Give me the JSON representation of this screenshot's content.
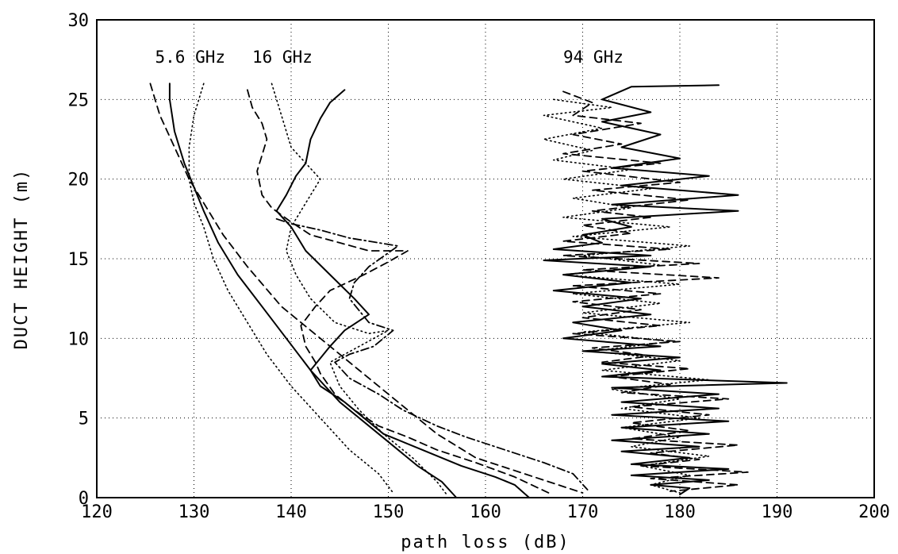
{
  "chart_data": {
    "type": "line",
    "title": "",
    "xlabel": "path loss (dB)",
    "ylabel": "DUCT HEIGHT (m)",
    "xlim": [
      120,
      200
    ],
    "ylim": [
      0,
      30
    ],
    "xticks": [
      "120",
      "130",
      "140",
      "150",
      "160",
      "170",
      "180",
      "190",
      "200"
    ],
    "yticks": [
      "0",
      "5",
      "10",
      "15",
      "20",
      "25",
      "30"
    ],
    "grid": true,
    "annotations": [
      {
        "text": "5.6 GHz",
        "x": 126,
        "y": 27.3
      },
      {
        "text": "16 GHz",
        "x": 136,
        "y": 27.3
      },
      {
        "text": "94 GHz",
        "x": 168,
        "y": 27.3
      }
    ],
    "series": [
      {
        "group": "5.6 GHz",
        "style": "solid",
        "points": [
          [
            127.5,
            26
          ],
          [
            127.5,
            25
          ],
          [
            128,
            23
          ],
          [
            129,
            21
          ],
          [
            130,
            19.5
          ],
          [
            131,
            18
          ],
          [
            132.5,
            16
          ],
          [
            134.5,
            14
          ],
          [
            137,
            12
          ],
          [
            139.5,
            10
          ],
          [
            142,
            8
          ],
          [
            145,
            6
          ],
          [
            149,
            4
          ],
          [
            153,
            2
          ],
          [
            155.5,
            1
          ],
          [
            157,
            0
          ]
        ]
      },
      {
        "group": "5.6 GHz",
        "style": "dashed",
        "points": [
          [
            125.5,
            26
          ],
          [
            126.5,
            24
          ],
          [
            128,
            22
          ],
          [
            129.5,
            20
          ],
          [
            131,
            18.5
          ],
          [
            133,
            16.5
          ],
          [
            135.5,
            14.5
          ],
          [
            139,
            12
          ],
          [
            143,
            10
          ],
          [
            147,
            8
          ],
          [
            151,
            6
          ],
          [
            155,
            4
          ],
          [
            159,
            2.5
          ],
          [
            164,
            1.5
          ],
          [
            170,
            0.3
          ]
        ]
      },
      {
        "group": "5.6 GHz",
        "style": "dotted",
        "points": [
          [
            131,
            26
          ],
          [
            130,
            24
          ],
          [
            129.5,
            22
          ],
          [
            129.5,
            20
          ],
          [
            130,
            18.5
          ],
          [
            131,
            17
          ],
          [
            132,
            15
          ],
          [
            133.5,
            13
          ],
          [
            135.5,
            11
          ],
          [
            137.5,
            9
          ],
          [
            140,
            7
          ],
          [
            143,
            5
          ],
          [
            146,
            3
          ],
          [
            149,
            1.5
          ],
          [
            150.5,
            0.3
          ]
        ]
      },
      {
        "group": "16 GHz",
        "style": "solid",
        "points": [
          [
            145.5,
            25.6
          ],
          [
            144,
            24.8
          ],
          [
            143,
            23.8
          ],
          [
            142,
            22.5
          ],
          [
            141.5,
            21
          ],
          [
            140.5,
            20.2
          ],
          [
            139.5,
            19
          ],
          [
            138.5,
            18
          ],
          [
            140,
            17
          ],
          [
            141.5,
            15.5
          ],
          [
            144,
            14
          ],
          [
            146.5,
            12.5
          ],
          [
            148,
            11.5
          ],
          [
            145.5,
            10.5
          ],
          [
            144,
            9.5
          ],
          [
            142,
            8
          ],
          [
            143,
            7
          ],
          [
            145.5,
            6
          ],
          [
            147.5,
            5
          ],
          [
            149.5,
            4
          ],
          [
            153.5,
            3
          ],
          [
            157.5,
            2
          ],
          [
            161,
            1.3
          ],
          [
            163,
            0.8
          ],
          [
            164.5,
            0
          ]
        ]
      },
      {
        "group": "16 GHz",
        "style": "dashed",
        "points": [
          [
            135.5,
            25.6
          ],
          [
            136,
            24.5
          ],
          [
            137,
            23.5
          ],
          [
            137.5,
            22.5
          ],
          [
            137,
            21.5
          ],
          [
            136.5,
            20.5
          ],
          [
            137,
            19
          ],
          [
            138,
            18.2
          ],
          [
            140,
            17.3
          ],
          [
            142,
            16.5
          ],
          [
            145,
            16
          ],
          [
            148,
            15.5
          ],
          [
            152,
            15.5
          ],
          [
            150,
            14.8
          ],
          [
            147.5,
            14
          ],
          [
            144,
            13
          ],
          [
            142.5,
            12
          ],
          [
            141,
            10.8
          ],
          [
            141.5,
            9.5
          ],
          [
            142.5,
            8.5
          ],
          [
            143,
            7.8
          ],
          [
            144.5,
            6.5
          ],
          [
            146.5,
            5.5
          ],
          [
            149,
            4.5
          ],
          [
            152,
            3.8
          ],
          [
            155,
            3
          ],
          [
            159,
            2.2
          ],
          [
            163,
            1.3
          ],
          [
            166.5,
            0.3
          ]
        ]
      },
      {
        "group": "16 GHz",
        "style": "dash-dot",
        "points": [
          [
            138.5,
            17.5
          ],
          [
            140,
            17.2
          ],
          [
            143,
            16.8
          ],
          [
            146,
            16.3
          ],
          [
            149,
            16
          ],
          [
            151,
            15.8
          ],
          [
            148,
            14.5
          ],
          [
            146.5,
            13.5
          ],
          [
            146,
            12.5
          ],
          [
            148,
            11
          ],
          [
            150.5,
            10.5
          ],
          [
            148.5,
            9.5
          ],
          [
            146,
            9
          ],
          [
            144.5,
            8.5
          ],
          [
            146,
            7.5
          ],
          [
            149,
            6.5
          ],
          [
            151.5,
            5.5
          ],
          [
            155,
            4.5
          ],
          [
            158,
            3.8
          ],
          [
            162,
            3
          ],
          [
            166,
            2.2
          ],
          [
            169,
            1.5
          ],
          [
            170.5,
            0.5
          ]
        ]
      },
      {
        "group": "16 GHz",
        "style": "dotted",
        "points": [
          [
            138,
            26
          ],
          [
            139,
            24
          ],
          [
            140,
            22
          ],
          [
            141.5,
            21
          ],
          [
            143,
            20
          ],
          [
            141.5,
            18.5
          ],
          [
            140,
            17
          ],
          [
            139.5,
            15.5
          ],
          [
            140.5,
            14
          ],
          [
            142,
            12.5
          ],
          [
            144.5,
            11
          ],
          [
            148,
            10.3
          ],
          [
            150,
            10.5
          ],
          [
            147,
            9.5
          ],
          [
            144,
            8.5
          ],
          [
            145,
            7
          ],
          [
            147,
            5.5
          ],
          [
            149.5,
            4
          ],
          [
            152.5,
            2.5
          ],
          [
            155,
            1
          ],
          [
            156,
            0.2
          ]
        ]
      },
      {
        "group": "94 GHz",
        "style": "solid",
        "points": [
          [
            184,
            25.9
          ],
          [
            175,
            25.8
          ],
          [
            172,
            25
          ],
          [
            177,
            24.2
          ],
          [
            172,
            23.6
          ],
          [
            178,
            22.8
          ],
          [
            174,
            22
          ],
          [
            180,
            21.3
          ],
          [
            173,
            20.7
          ],
          [
            183,
            20.2
          ],
          [
            174,
            19.6
          ],
          [
            186,
            19
          ],
          [
            173,
            18.4
          ],
          [
            186,
            18
          ],
          [
            172,
            17.5
          ],
          [
            175,
            17
          ],
          [
            170,
            16.5
          ],
          [
            172,
            16
          ],
          [
            167,
            15.6
          ],
          [
            177,
            15.2
          ],
          [
            166,
            14.9
          ],
          [
            177,
            14.5
          ],
          [
            168,
            14
          ],
          [
            175,
            13.5
          ],
          [
            167,
            13
          ],
          [
            176,
            12.5
          ],
          [
            170,
            12
          ],
          [
            177,
            11.5
          ],
          [
            169,
            11
          ],
          [
            174,
            10.5
          ],
          [
            168,
            10
          ],
          [
            178,
            9.5
          ],
          [
            170,
            9.2
          ],
          [
            180,
            8.8
          ],
          [
            172,
            8.4
          ],
          [
            178,
            8
          ],
          [
            172,
            7.6
          ],
          [
            191,
            7.2
          ],
          [
            173,
            6.9
          ],
          [
            184,
            6.5
          ],
          [
            174,
            6
          ],
          [
            184,
            5.6
          ],
          [
            173,
            5.2
          ],
          [
            185,
            4.8
          ],
          [
            174,
            4.4
          ],
          [
            183,
            4
          ],
          [
            173,
            3.6
          ],
          [
            182,
            3.2
          ],
          [
            174,
            2.9
          ],
          [
            181,
            2.5
          ],
          [
            175,
            2.1
          ],
          [
            185,
            1.8
          ],
          [
            175,
            1.4
          ],
          [
            183,
            1.1
          ],
          [
            177,
            0.8
          ],
          [
            181,
            0.6
          ],
          [
            180,
            0.2
          ]
        ]
      },
      {
        "group": "94 GHz",
        "style": "dashed",
        "points": [
          [
            168,
            25.5
          ],
          [
            171,
            24.8
          ],
          [
            169,
            24
          ],
          [
            176,
            23.5
          ],
          [
            169,
            22.8
          ],
          [
            174,
            22.2
          ],
          [
            168,
            21.6
          ],
          [
            178,
            21
          ],
          [
            170,
            20.5
          ],
          [
            180,
            19.8
          ],
          [
            171,
            19.3
          ],
          [
            181,
            18.7
          ],
          [
            171,
            18
          ],
          [
            177,
            17.6
          ],
          [
            170,
            17.1
          ],
          [
            175,
            16.6
          ],
          [
            168,
            16.1
          ],
          [
            179,
            15.6
          ],
          [
            168,
            15.2
          ],
          [
            182,
            14.7
          ],
          [
            170,
            14.3
          ],
          [
            184,
            13.8
          ],
          [
            169,
            13.3
          ],
          [
            178,
            12.8
          ],
          [
            169,
            12.3
          ],
          [
            176,
            11.8
          ],
          [
            170,
            11.3
          ],
          [
            178,
            10.8
          ],
          [
            169,
            10.3
          ],
          [
            180,
            9.8
          ],
          [
            171,
            9.4
          ],
          [
            177,
            8.9
          ],
          [
            172,
            8.5
          ],
          [
            181,
            8.1
          ],
          [
            173,
            7.6
          ],
          [
            179,
            7.1
          ],
          [
            174,
            6.6
          ],
          [
            185,
            6.2
          ],
          [
            175,
            5.7
          ],
          [
            183,
            5.2
          ],
          [
            175,
            4.7
          ],
          [
            181,
            4.2
          ],
          [
            175,
            3.7
          ],
          [
            186,
            3.3
          ],
          [
            177,
            2.8
          ],
          [
            182,
            2.4
          ],
          [
            176,
            2
          ],
          [
            187,
            1.6
          ],
          [
            177,
            1.2
          ],
          [
            186,
            0.8
          ],
          [
            179,
            0.4
          ]
        ]
      },
      {
        "group": "94 GHz",
        "style": "dotted",
        "points": [
          [
            167,
            25
          ],
          [
            173,
            24.5
          ],
          [
            166,
            24
          ],
          [
            172,
            23.2
          ],
          [
            166,
            22.5
          ],
          [
            171,
            21.8
          ],
          [
            167,
            21.2
          ],
          [
            175,
            20.6
          ],
          [
            168,
            20
          ],
          [
            177,
            19.4
          ],
          [
            169,
            18.8
          ],
          [
            175,
            18.2
          ],
          [
            168,
            17.6
          ],
          [
            179,
            17
          ],
          [
            169,
            16.4
          ],
          [
            181,
            15.8
          ],
          [
            170,
            15.2
          ],
          [
            178,
            14.6
          ],
          [
            168,
            14
          ],
          [
            180,
            13.4
          ],
          [
            169,
            12.8
          ],
          [
            178,
            12.2
          ],
          [
            170,
            11.6
          ],
          [
            181,
            11
          ],
          [
            170,
            10.4
          ],
          [
            179,
            9.8
          ],
          [
            171,
            9.2
          ],
          [
            180,
            8.6
          ],
          [
            172,
            8
          ],
          [
            183,
            7.4
          ],
          [
            173,
            6.8
          ],
          [
            180,
            6.2
          ],
          [
            174,
            5.6
          ],
          [
            182,
            5
          ],
          [
            174,
            4.4
          ],
          [
            180,
            3.8
          ],
          [
            175,
            3.2
          ],
          [
            183,
            2.6
          ],
          [
            176,
            2
          ],
          [
            181,
            1.4
          ],
          [
            177,
            0.8
          ],
          [
            180,
            0.3
          ]
        ]
      }
    ]
  }
}
